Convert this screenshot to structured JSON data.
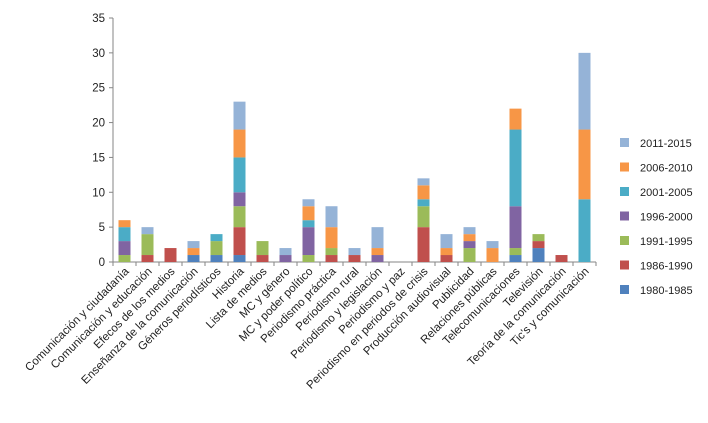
{
  "chart_data": {
    "type": "bar",
    "stacked": true,
    "categories": [
      "Comunicación y ciudadanía",
      "Comunicación y educación",
      "Efecos de los medios",
      "Enseñanza de la comunicación",
      "Géneros periodísticos",
      "Historia",
      "Lista de medios",
      "MC y género",
      "MC y poder político",
      "Periodismo práctica",
      "Periodismo rural",
      "Periodismo y legislación",
      "Periodismo y paz",
      "Periodismo en periodos de crisis",
      "Producción audiovisual",
      "Publicidad",
      "Relaciones públicas",
      "Telecomunicaciones",
      "Televisión",
      "Teoría de la comunicación",
      "Tic's y comunicación"
    ],
    "series": [
      {
        "name": "1980-1985",
        "color": "#4f81bd",
        "values": [
          0,
          0,
          0,
          1,
          1,
          1,
          0,
          0,
          0,
          0,
          0,
          0,
          0,
          0,
          0,
          0,
          0,
          1,
          2,
          0,
          0
        ]
      },
      {
        "name": "1986-1990",
        "color": "#c0504d",
        "values": [
          0,
          1,
          2,
          0,
          0,
          4,
          1,
          0,
          0,
          1,
          1,
          0,
          0,
          5,
          1,
          0,
          0,
          0,
          1,
          1,
          0
        ]
      },
      {
        "name": "1991-1995",
        "color": "#9bbb59",
        "values": [
          1,
          3,
          0,
          0,
          2,
          3,
          2,
          0,
          1,
          1,
          0,
          0,
          0,
          3,
          0,
          2,
          0,
          1,
          1,
          0,
          0
        ]
      },
      {
        "name": "1996-2000",
        "color": "#8064a2",
        "values": [
          2,
          0,
          0,
          0,
          0,
          2,
          0,
          1,
          4,
          0,
          0,
          1,
          0,
          0,
          0,
          1,
          0,
          6,
          0,
          0,
          0
        ]
      },
      {
        "name": "2001-2005",
        "color": "#4bacc6",
        "values": [
          2,
          0,
          0,
          0,
          1,
          5,
          0,
          0,
          1,
          0,
          0,
          0,
          0,
          1,
          0,
          0,
          0,
          11,
          0,
          0,
          9
        ]
      },
      {
        "name": "2006-2010",
        "color": "#f79646",
        "values": [
          1,
          0,
          0,
          1,
          0,
          4,
          0,
          0,
          2,
          3,
          0,
          1,
          0,
          2,
          1,
          1,
          2,
          3,
          0,
          0,
          10
        ]
      },
      {
        "name": "2011-2015",
        "color": "#95b3d7",
        "values": [
          0,
          1,
          0,
          1,
          0,
          4,
          0,
          1,
          1,
          3,
          1,
          3,
          0,
          1,
          2,
          1,
          1,
          0,
          0,
          0,
          11
        ]
      }
    ],
    "ylim": [
      0,
      35
    ],
    "yticks": [
      "0",
      "5",
      "10",
      "15",
      "20",
      "25",
      "30",
      "35"
    ],
    "grid": false,
    "legend_position": "right",
    "title": "",
    "xlabel": "",
    "ylabel": ""
  }
}
